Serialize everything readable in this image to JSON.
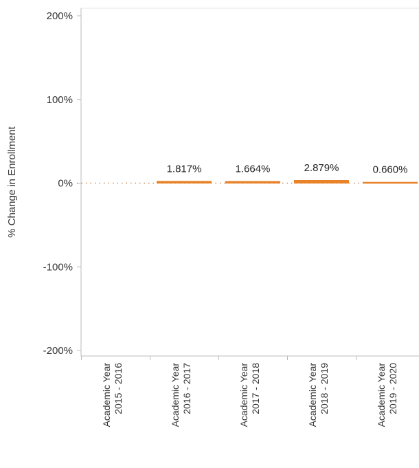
{
  "chart_data": {
    "type": "bar",
    "title": "",
    "xlabel": "",
    "ylabel": "% Change in Enrollment",
    "ylim": [
      -200,
      200
    ],
    "yticks": [
      "200%",
      "100%",
      "0%",
      "-100%",
      "-200%"
    ],
    "ytick_values": [
      200,
      100,
      0,
      -100,
      -200
    ],
    "categories": [
      [
        "Academic Year",
        "2015 - 2016"
      ],
      [
        "Academic Year",
        "2016 - 2017"
      ],
      [
        "Academic Year",
        "2017 - 2018"
      ],
      [
        "Academic Year",
        "2018 - 2019"
      ],
      [
        "Academic Year",
        "2019 - 2020"
      ]
    ],
    "values": [
      null,
      1.817,
      1.664,
      2.879,
      0.66
    ],
    "data_labels": [
      "",
      "1.817%",
      "1.664%",
      "2.879%",
      "0.660%"
    ],
    "bar_color": "#e8832a",
    "zero_line": "dotted",
    "grid": false
  }
}
